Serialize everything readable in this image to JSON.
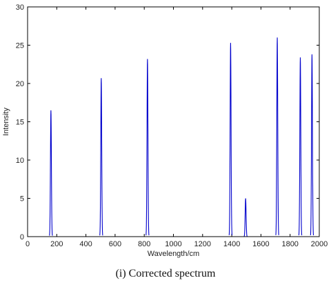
{
  "caption": "(i) Corrected spectrum",
  "chart_data": {
    "type": "line",
    "title": "",
    "xlabel": "Wavelength/cm",
    "ylabel": "Intensity",
    "xlim": [
      0,
      2000
    ],
    "ylim": [
      0,
      30
    ],
    "xticks": [
      0,
      200,
      400,
      600,
      800,
      1000,
      1200,
      1400,
      1600,
      1800,
      2000
    ],
    "yticks": [
      0,
      5,
      10,
      15,
      20,
      25,
      30
    ],
    "grid": false,
    "line_color": "#0000cc",
    "peaks": [
      {
        "x": 160,
        "y": 16.5
      },
      {
        "x": 505,
        "y": 20.7
      },
      {
        "x": 822,
        "y": 23.2
      },
      {
        "x": 1392,
        "y": 25.3
      },
      {
        "x": 1495,
        "y": 5.0
      },
      {
        "x": 1712,
        "y": 26.0
      },
      {
        "x": 1870,
        "y": 23.4
      },
      {
        "x": 1950,
        "y": 23.8
      }
    ]
  }
}
